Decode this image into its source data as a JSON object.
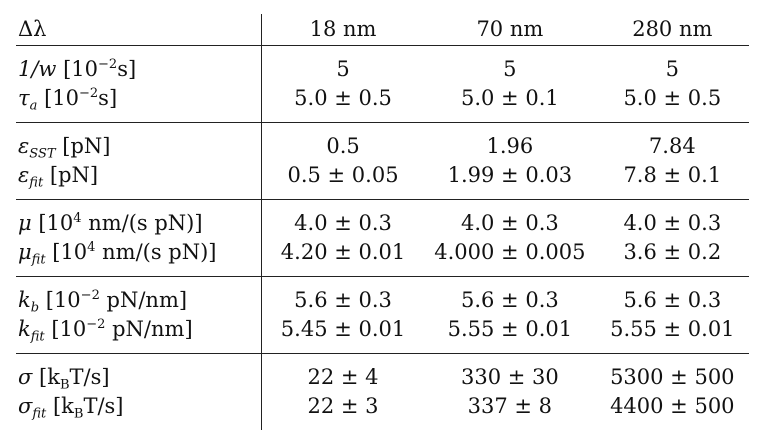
{
  "header": {
    "param_label": "Δλ",
    "columns": [
      "18 nm",
      "70 nm",
      "280 nm"
    ]
  },
  "rows": [
    {
      "sym": "1/w",
      "sub": "",
      "unit_pre": " [10",
      "unit_sup": "−2",
      "unit_post": "s]",
      "values": [
        "5",
        "5",
        "5"
      ]
    },
    {
      "sym": "τ",
      "sub": "a",
      "unit_pre": " [10",
      "unit_sup": "−2",
      "unit_post": "s]",
      "values": [
        "5.0 ± 0.5",
        "5.0 ± 0.1",
        "5.0 ± 0.5"
      ]
    },
    {
      "sym": "ε",
      "sub": "SST",
      "unit_pre": " [pN]",
      "unit_sup": "",
      "unit_post": "",
      "values": [
        "0.5",
        "1.96",
        "7.84"
      ]
    },
    {
      "sym": "ε",
      "sub": "fit",
      "unit_pre": " [pN]",
      "unit_sup": "",
      "unit_post": "",
      "values": [
        "0.5 ± 0.05",
        "1.99 ± 0.03",
        "7.8 ± 0.1"
      ]
    },
    {
      "sym": "μ",
      "sub": "",
      "unit_pre": " [10",
      "unit_sup": "4",
      "unit_post": " nm/(s pN)]",
      "values": [
        "4.0 ± 0.3",
        "4.0 ± 0.3",
        "4.0 ± 0.3"
      ]
    },
    {
      "sym": "μ",
      "sub": "fit",
      "unit_pre": " [10",
      "unit_sup": "4",
      "unit_post": " nm/(s pN)]",
      "values": [
        "4.20 ± 0.01",
        "4.000 ± 0.005",
        "3.6 ± 0.2"
      ]
    },
    {
      "sym": "k",
      "sub": "b",
      "unit_pre": " [10",
      "unit_sup": "−2",
      "unit_post": " pN/nm]",
      "values": [
        "5.6 ± 0.3",
        "5.6 ± 0.3",
        "5.6 ± 0.3"
      ]
    },
    {
      "sym": "k",
      "sub": "fit",
      "unit_pre": " [10",
      "unit_sup": "−2",
      "unit_post": " pN/nm]",
      "values": [
        "5.45 ± 0.01",
        "5.55 ± 0.01",
        "5.55 ± 0.01"
      ]
    },
    {
      "sym": "σ",
      "sub": "",
      "unit_pre": " [k",
      "unit_sup": "",
      "unit_sub": "B",
      "unit_post": "T/s]",
      "values": [
        "22 ± 4",
        "330 ± 30",
        "5300 ± 500"
      ]
    },
    {
      "sym": "σ",
      "sub": "fit",
      "unit_pre": " [k",
      "unit_sup": "",
      "unit_sub": "B",
      "unit_post": "T/s]",
      "values": [
        "22 ± 3",
        "337 ± 8",
        "4400 ± 500"
      ]
    }
  ]
}
